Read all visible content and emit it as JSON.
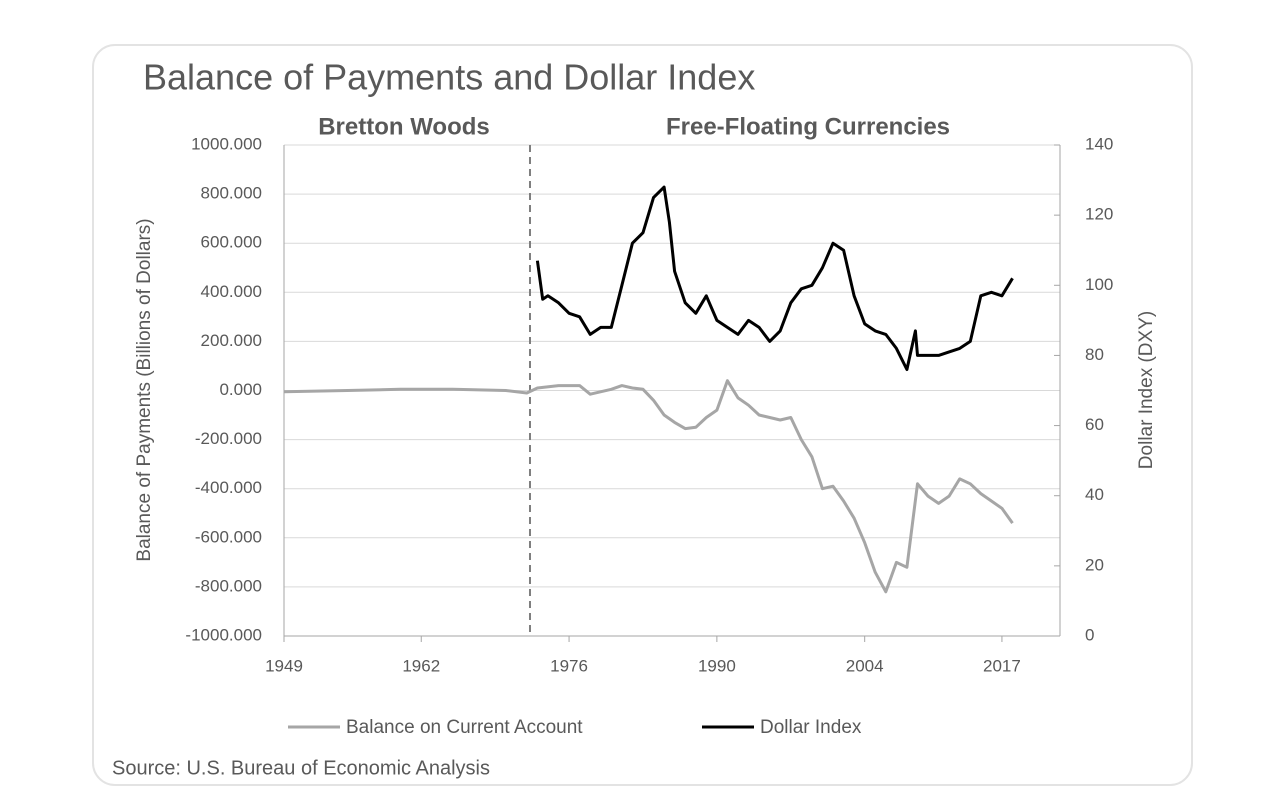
{
  "chart_data": {
    "type": "line",
    "title": "Balance of Payments and Dollar Index",
    "annotations": [
      "Bretton Woods",
      "Free-Floating Currencies"
    ],
    "divider_x": 1972.3,
    "y_label": "Balance of Payments (Billions of Dollars)",
    "y2_label": "Dollar Index (DXY)",
    "source": "Source: U.S. Bureau of Economic Analysis",
    "xlim": [
      1949,
      2022.5
    ],
    "xticks": [
      1949,
      1962,
      1976,
      1990,
      2004,
      2017
    ],
    "ylim": [
      -1000,
      1000
    ],
    "yticks": [
      {
        "value": -1000,
        "label": "-1000.000"
      },
      {
        "value": -800,
        "label": "-800.000"
      },
      {
        "value": -600,
        "label": "-600.000"
      },
      {
        "value": -400,
        "label": "-400.000"
      },
      {
        "value": -200,
        "label": "-200.000"
      },
      {
        "value": 0,
        "label": "0.000"
      },
      {
        "value": 200,
        "label": "200.000"
      },
      {
        "value": 400,
        "label": "400.000"
      },
      {
        "value": 600,
        "label": "600.000"
      },
      {
        "value": 800,
        "label": "800.000"
      },
      {
        "value": 1000,
        "label": "1000.000"
      }
    ],
    "y2lim": [
      0,
      140
    ],
    "y2ticks": [
      0,
      20,
      40,
      60,
      80,
      100,
      120,
      140
    ],
    "grid": true,
    "legend": "bottom",
    "series": [
      {
        "name": "Balance on Current Account",
        "color": "#a6a6a6",
        "axis": "y",
        "x": [
          1949,
          1955,
          1960,
          1965,
          1970,
          1972,
          1973,
          1975,
          1977,
          1978,
          1980,
          1981,
          1982,
          1983,
          1984,
          1985,
          1986,
          1987,
          1988,
          1989,
          1990,
          1991,
          1992,
          1993,
          1994,
          1995,
          1996,
          1997,
          1998,
          1999,
          2000,
          2001,
          2002,
          2003,
          2004,
          2005,
          2006,
          2007,
          2008,
          2009,
          2010,
          2011,
          2012,
          2013,
          2014,
          2015,
          2016,
          2017,
          2018
        ],
        "values": [
          -5,
          0,
          5,
          5,
          0,
          -10,
          10,
          20,
          20,
          -15,
          5,
          20,
          10,
          5,
          -40,
          -100,
          -130,
          -155,
          -150,
          -110,
          -80,
          40,
          -30,
          -60,
          -100,
          -110,
          -120,
          -110,
          -200,
          -270,
          -400,
          -390,
          -450,
          -520,
          -620,
          -740,
          -820,
          -700,
          -720,
          -380,
          -430,
          -460,
          -430,
          -360,
          -380,
          -420,
          -450,
          -480,
          -540
        ]
      },
      {
        "name": "Dollar Index",
        "color": "#000000",
        "axis": "y2",
        "x": [
          1973,
          1973.5,
          1974,
          1975,
          1976,
          1977,
          1978,
          1979,
          1980,
          1981,
          1982,
          1983,
          1984,
          1985,
          1985.5,
          1986,
          1987,
          1988,
          1989,
          1990,
          1991,
          1992,
          1993,
          1994,
          1995,
          1996,
          1997,
          1998,
          1999,
          2000,
          2001,
          2002,
          2003,
          2004,
          2005,
          2006,
          2007,
          2008,
          2008.8,
          2009,
          2010,
          2011,
          2012,
          2013,
          2014,
          2015,
          2016,
          2017,
          2018
        ],
        "values": [
          107,
          96,
          97,
          95,
          92,
          91,
          86,
          88,
          88,
          100,
          112,
          115,
          125,
          128,
          118,
          104,
          95,
          92,
          97,
          90,
          88,
          86,
          90,
          88,
          84,
          87,
          95,
          99,
          100,
          105,
          112,
          110,
          97,
          89,
          87,
          86,
          82,
          76,
          87,
          80,
          80,
          80,
          81,
          82,
          84,
          97,
          98,
          97,
          102
        ]
      }
    ]
  }
}
